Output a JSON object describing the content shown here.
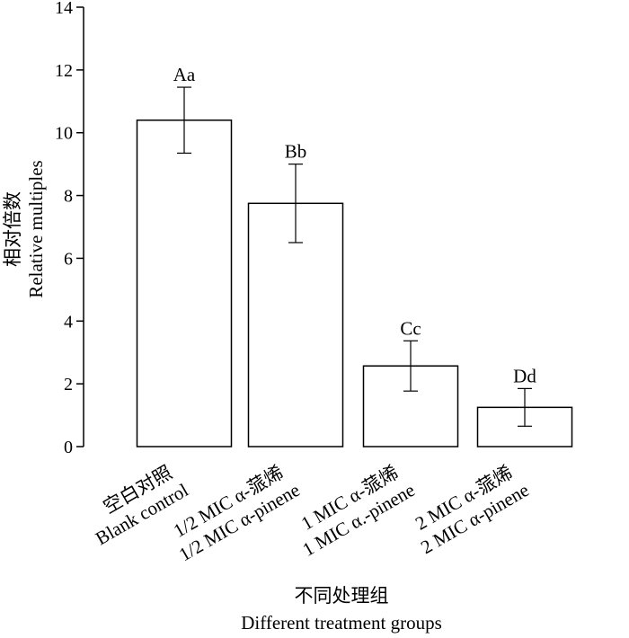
{
  "chart_data": {
    "type": "bar",
    "title": "",
    "ylabel_cn": "相对倍数",
    "ylabel_en": "Relative multiples",
    "xlabel_cn": "不同处理组",
    "xlabel_en": "Different treatment groups",
    "ylim": [
      0,
      14
    ],
    "yticks": [
      0,
      2,
      4,
      6,
      8,
      10,
      12,
      14
    ],
    "grid": false,
    "categories": [
      {
        "cn": "空白对照",
        "en": "Blank control"
      },
      {
        "cn": "1/2 MIC α-蒎烯",
        "en": "1/2 MIC α-pinene"
      },
      {
        "cn": "1 MIC α-蒎烯",
        "en": "1 MIC α.-pinene"
      },
      {
        "cn": "2 MIC α-蒎烯",
        "en": "2 MIC α-pinene"
      }
    ],
    "values": [
      10.4,
      7.75,
      2.57,
      1.25
    ],
    "errors": [
      1.05,
      1.25,
      0.8,
      0.6
    ],
    "significance_labels": [
      "Aa",
      "Bb",
      "Cc",
      "Dd"
    ]
  }
}
